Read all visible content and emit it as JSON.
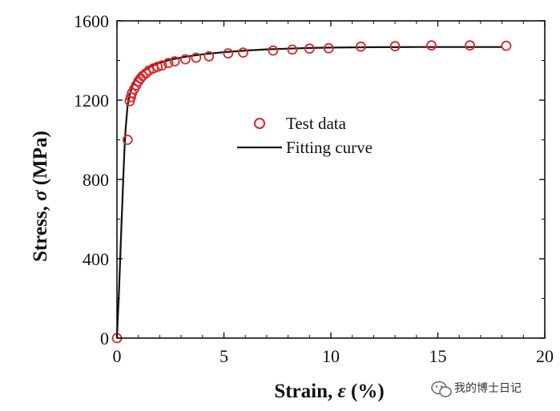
{
  "chart_data": {
    "type": "scatter",
    "title": "",
    "xlabel_prefix": "Strain, ",
    "xlabel_symbol": "ε",
    "xlabel_suffix": " (%)",
    "ylabel_prefix": "Stress, ",
    "ylabel_symbol": "σ",
    "ylabel_suffix": " (MPa)",
    "xlim": [
      0,
      20
    ],
    "ylim": [
      0,
      1600
    ],
    "x_ticks": [
      0,
      5,
      10,
      15,
      20
    ],
    "y_ticks": [
      0,
      400,
      800,
      1200,
      1600
    ],
    "grid": false,
    "legend_position": "center",
    "marker_color": "#d9262b",
    "line_color": "#111111",
    "series": [
      {
        "name": "Test data",
        "kind": "markers",
        "x": [
          0.0,
          0.5,
          0.6,
          0.65,
          0.7,
          0.8,
          0.9,
          1.0,
          1.1,
          1.2,
          1.35,
          1.5,
          1.7,
          1.9,
          2.1,
          2.4,
          2.7,
          3.2,
          3.7,
          4.3,
          5.2,
          5.9,
          7.3,
          8.2,
          9.0,
          9.9,
          11.4,
          13.0,
          14.7,
          16.5,
          18.2
        ],
        "y": [
          0,
          1000,
          1195,
          1215,
          1235,
          1255,
          1275,
          1295,
          1310,
          1322,
          1335,
          1350,
          1360,
          1368,
          1375,
          1387,
          1396,
          1406,
          1414,
          1421,
          1436,
          1440,
          1450,
          1455,
          1460,
          1462,
          1470,
          1472,
          1476,
          1476,
          1474
        ]
      },
      {
        "name": "Fitting curve",
        "kind": "line",
        "x": [
          0.0,
          0.05,
          0.1,
          0.15,
          0.2,
          0.25,
          0.3,
          0.35,
          0.4,
          0.5,
          0.6,
          0.7,
          0.8,
          0.9,
          1.0,
          1.2,
          1.4,
          1.6,
          1.8,
          2.0,
          2.5,
          3.0,
          3.5,
          4.0,
          5.0,
          6.0,
          7.0,
          8.0,
          9.0,
          10.0,
          12.0,
          14.0,
          16.0,
          18.0
        ],
        "y": [
          0,
          125,
          252,
          395,
          540,
          680,
          820,
          945,
          1050,
          1175,
          1230,
          1265,
          1290,
          1308,
          1322,
          1343,
          1358,
          1370,
          1380,
          1388,
          1404,
          1415,
          1424,
          1431,
          1442,
          1450,
          1456,
          1460,
          1463,
          1465,
          1467,
          1468,
          1468,
          1468
        ]
      }
    ]
  },
  "watermark": {
    "text": "我的博士日记",
    "icon": "wechat-icon",
    "color": "#333333"
  }
}
